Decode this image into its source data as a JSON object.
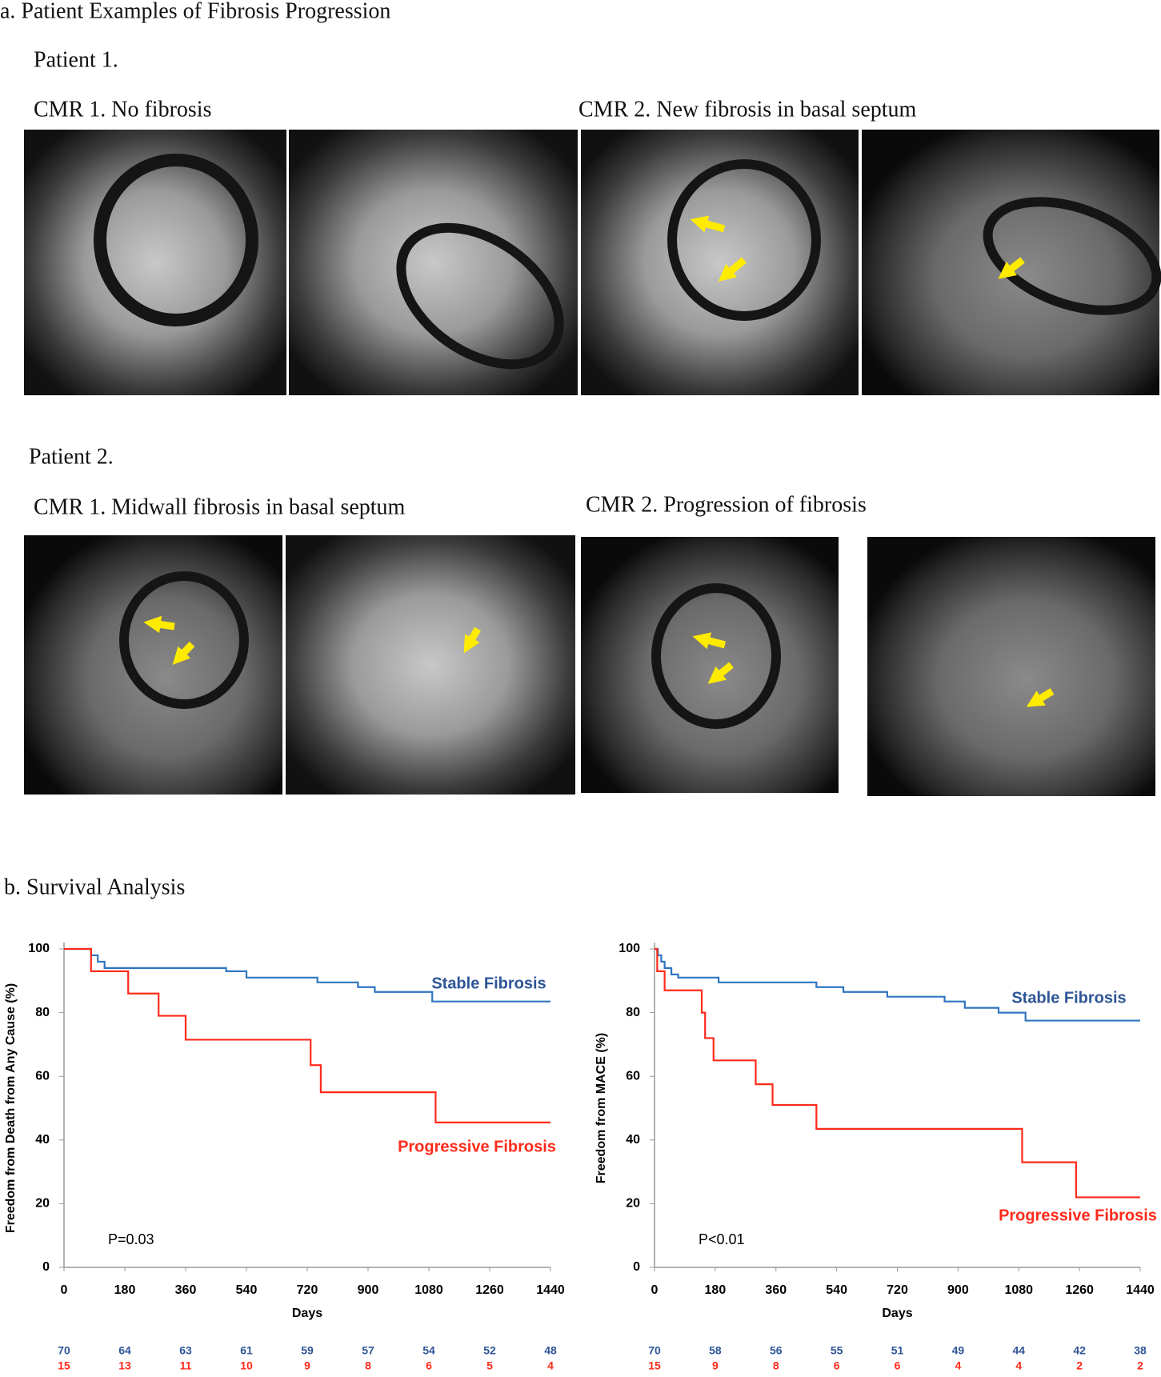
{
  "panel_a": {
    "title": "a. Patient Examples of Fibrosis Progression",
    "patient_1": {
      "label": "Patient 1.",
      "cmr_1": "CMR 1. No fibrosis",
      "cmr_2": "CMR 2. New fibrosis in basal septum"
    },
    "patient_2": {
      "label": "Patient 2.",
      "cmr_1": "CMR 1. Midwall fibrosis in basal septum",
      "cmr_2": "CMR 2. Progression of fibrosis"
    }
  },
  "panel_b": {
    "title": "b. Survival Analysis"
  },
  "chart_data": [
    {
      "type": "line",
      "step": true,
      "y_label": "Freedom from Death from Any Cause (%)",
      "x_label": "Days",
      "xlim": [
        0,
        1440
      ],
      "xticks": [
        0,
        180,
        360,
        540,
        720,
        900,
        1080,
        1260,
        1440
      ],
      "ylim": [
        0,
        100
      ],
      "yticks": [
        0,
        20,
        40,
        60,
        80,
        100
      ],
      "p_value": "P=0.03",
      "series": [
        {
          "name": "Stable Fibrosis",
          "color": "#2e75c0",
          "label_color": "#2f5597",
          "x": [
            0,
            80,
            80,
            100,
            100,
            120,
            120,
            480,
            480,
            540,
            540,
            750,
            750,
            870,
            870,
            920,
            920,
            1090,
            1090,
            1440
          ],
          "values": [
            100,
            100,
            98,
            98,
            96,
            96,
            94,
            94,
            93,
            93,
            91,
            91,
            89.5,
            89.5,
            88,
            88,
            86.5,
            86.5,
            83.5,
            83.5
          ]
        },
        {
          "name": "Progressive Fibrosis",
          "color": "#ff2a1a",
          "label_color": "#ff2a1a",
          "x": [
            0,
            80,
            80,
            190,
            190,
            280,
            280,
            360,
            360,
            730,
            730,
            760,
            760,
            1100,
            1100,
            1440
          ],
          "values": [
            100,
            100,
            93,
            93,
            86,
            86,
            79,
            79,
            71.5,
            71.5,
            63.5,
            63.5,
            55,
            55,
            45.5,
            45.5
          ]
        }
      ],
      "numbers_at_risk": [
        [
          70,
          64,
          63,
          61,
          59,
          57,
          54,
          52,
          48
        ],
        [
          15,
          13,
          11,
          10,
          9,
          8,
          6,
          5,
          4
        ]
      ]
    },
    {
      "type": "line",
      "step": true,
      "y_label": "Freedom from MACE (%)",
      "x_label": "Days",
      "xlim": [
        0,
        1440
      ],
      "xticks": [
        0,
        180,
        360,
        540,
        720,
        900,
        1080,
        1260,
        1440
      ],
      "ylim": [
        0,
        100
      ],
      "yticks": [
        0,
        20,
        40,
        60,
        80,
        100
      ],
      "p_value": "P<0.01",
      "series": [
        {
          "name": "Stable Fibrosis",
          "color": "#2e75c0",
          "label_color": "#2f5597",
          "x": [
            0,
            10,
            10,
            20,
            20,
            30,
            30,
            50,
            50,
            70,
            70,
            190,
            190,
            480,
            480,
            560,
            560,
            690,
            690,
            860,
            860,
            920,
            920,
            1020,
            1020,
            1100,
            1100,
            1440
          ],
          "values": [
            100,
            100,
            98,
            98,
            96,
            96,
            94,
            94,
            92,
            92,
            91,
            91,
            89.5,
            89.5,
            88,
            88,
            86.5,
            86.5,
            85,
            85,
            83.5,
            83.5,
            81.5,
            81.5,
            80,
            80,
            77.5,
            77.5
          ]
        },
        {
          "name": "Progressive Fibrosis",
          "color": "#ff2a1a",
          "label_color": "#ff2a1a",
          "x": [
            0,
            8,
            8,
            30,
            30,
            140,
            140,
            150,
            150,
            175,
            175,
            300,
            300,
            350,
            350,
            480,
            480,
            1090,
            1090,
            1250,
            1250,
            1440
          ],
          "values": [
            100,
            100,
            93,
            93,
            87,
            87,
            80,
            80,
            72,
            72,
            65,
            65,
            57.5,
            57.5,
            51,
            51,
            43.5,
            43.5,
            33,
            33,
            22,
            22
          ]
        }
      ],
      "numbers_at_risk": [
        [
          70,
          58,
          56,
          55,
          51,
          49,
          44,
          42,
          38
        ],
        [
          15,
          9,
          8,
          6,
          6,
          4,
          4,
          2,
          2
        ]
      ]
    }
  ]
}
